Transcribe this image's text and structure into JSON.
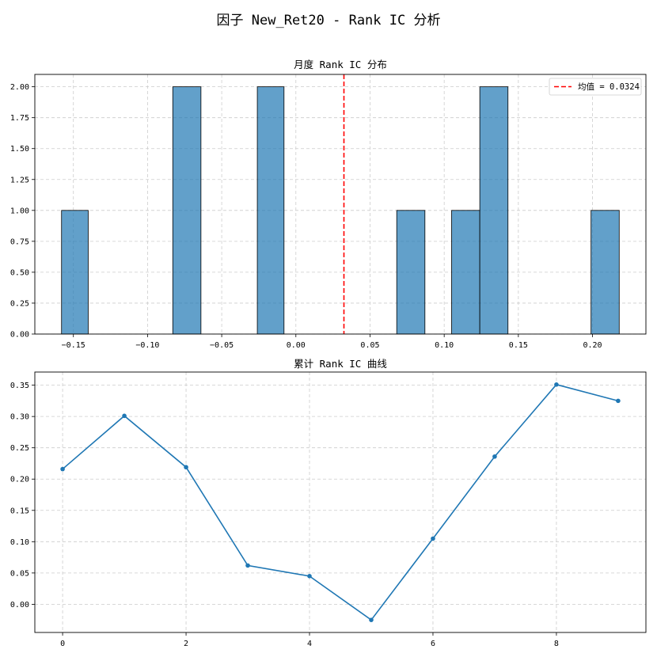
{
  "figure": {
    "suptitle": "因子 New_Ret20 - Rank IC 分析"
  },
  "chart_data": [
    {
      "type": "bar",
      "title": "月度 Rank IC 分布",
      "xlabel": "",
      "ylabel": "",
      "bins": [
        {
          "x0": -0.158,
          "x1": -0.14,
          "count": 1
        },
        {
          "x0": -0.083,
          "x1": -0.064,
          "count": 2
        },
        {
          "x0": -0.026,
          "x1": -0.008,
          "count": 2
        },
        {
          "x0": 0.068,
          "x1": 0.087,
          "count": 1
        },
        {
          "x0": 0.105,
          "x1": 0.124,
          "count": 1
        },
        {
          "x0": 0.124,
          "x1": 0.143,
          "count": 2
        },
        {
          "x0": 0.199,
          "x1": 0.218,
          "count": 1
        }
      ],
      "mean": 0.0324,
      "legend": {
        "label": "均值 = 0.0324",
        "location": "top-right"
      },
      "xlim": [
        -0.176,
        0.236
      ],
      "ylim": [
        0,
        2.1
      ],
      "xticks": [
        -0.15,
        -0.1,
        -0.05,
        0.0,
        0.05,
        0.1,
        0.15,
        0.2
      ],
      "xtick_labels": [
        "−0.15",
        "−0.10",
        "−0.05",
        "0.00",
        "0.05",
        "0.10",
        "0.15",
        "0.20"
      ],
      "yticks": [
        0.0,
        0.25,
        0.5,
        0.75,
        1.0,
        1.25,
        1.5,
        1.75,
        2.0
      ],
      "ytick_labels": [
        "0.00",
        "0.25",
        "0.50",
        "0.75",
        "1.00",
        "1.25",
        "1.50",
        "1.75",
        "2.00"
      ],
      "grid": true,
      "colors": {
        "bar": "#1f77b4",
        "mean_line": "#ff0000"
      }
    },
    {
      "type": "line",
      "title": "累计 Rank IC 曲线",
      "xlabel": "",
      "ylabel": "",
      "x": [
        0,
        1,
        2,
        3,
        4,
        5,
        6,
        7,
        8,
        9
      ],
      "y": [
        0.216,
        0.301,
        0.219,
        0.062,
        0.045,
        -0.025,
        0.105,
        0.236,
        0.351,
        0.325
      ],
      "xlim": [
        -0.45,
        9.45
      ],
      "ylim": [
        -0.045,
        0.371
      ],
      "xticks": [
        0,
        2,
        4,
        6,
        8
      ],
      "xtick_labels": [
        "0",
        "2",
        "4",
        "6",
        "8"
      ],
      "yticks": [
        0.0,
        0.05,
        0.1,
        0.15,
        0.2,
        0.25,
        0.3,
        0.35
      ],
      "ytick_labels": [
        "0.00",
        "0.05",
        "0.10",
        "0.15",
        "0.20",
        "0.25",
        "0.30",
        "0.35"
      ],
      "grid": true,
      "marker": "circle",
      "colors": {
        "line": "#1f77b4"
      }
    }
  ]
}
